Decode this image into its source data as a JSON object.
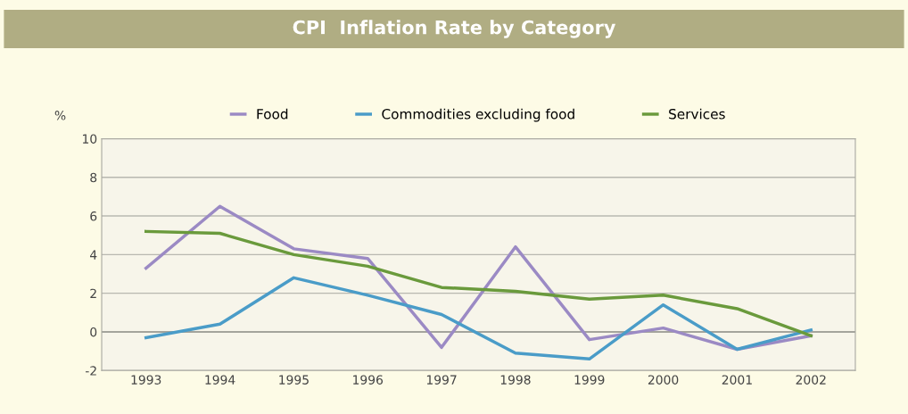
{
  "chart_data": {
    "type": "line",
    "title": "CPI  Inflation Rate by Category",
    "ylabel": "%",
    "categories": [
      "1993",
      "1994",
      "1995",
      "1996",
      "1997",
      "1998",
      "1999",
      "2000",
      "2001",
      "2002"
    ],
    "series": [
      {
        "name": "Food",
        "color": "#9b8ac4",
        "values": [
          3.3,
          6.5,
          4.3,
          3.8,
          -0.8,
          4.4,
          -0.4,
          0.2,
          -0.9,
          -0.2
        ]
      },
      {
        "name": "Commodities excluding food",
        "color": "#4a9cc8",
        "values": [
          -0.3,
          0.4,
          2.8,
          1.9,
          0.9,
          -1.1,
          -1.4,
          1.4,
          -0.9,
          0.1
        ]
      },
      {
        "name": "Services",
        "color": "#6a9a3c",
        "values": [
          5.2,
          5.1,
          4.0,
          3.4,
          2.3,
          2.1,
          1.7,
          1.9,
          1.2,
          -0.2
        ]
      }
    ],
    "ylim": [
      -2,
      10
    ],
    "yticks": [
      -2,
      0,
      2,
      4,
      6,
      8,
      10
    ],
    "grid": "y",
    "legend": "top",
    "marker": "none",
    "line_style": "solid"
  }
}
